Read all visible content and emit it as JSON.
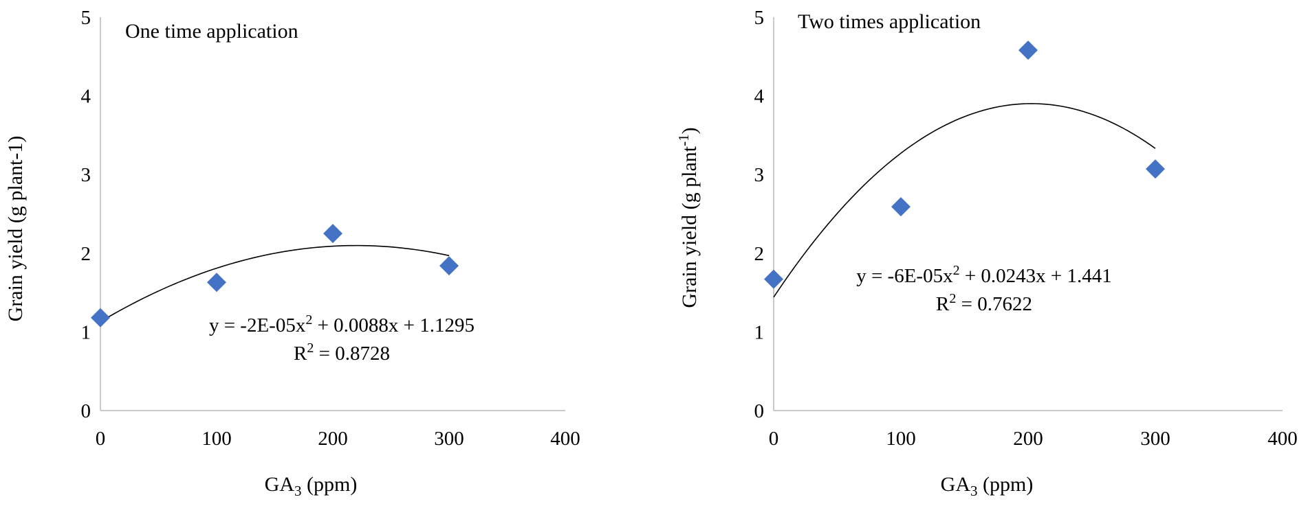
{
  "chart_data": [
    {
      "type": "scatter",
      "annotation": "One time application",
      "xlabel": "GA",
      "xlabel_sub": "3",
      "xlabel_after": " (ppm)",
      "ylabel": "Grain yield (g plant-1)",
      "ylabel_sup": "",
      "ylabel_after": "",
      "xlim": [
        0,
        400
      ],
      "ylim": [
        0,
        5
      ],
      "xticks": [
        0,
        100,
        200,
        300,
        400
      ],
      "yticks": [
        0,
        1,
        2,
        3,
        4,
        5
      ],
      "points": [
        {
          "x": 0,
          "y": 1.18
        },
        {
          "x": 100,
          "y": 1.63
        },
        {
          "x": 200,
          "y": 2.25
        },
        {
          "x": 300,
          "y": 1.84
        }
      ],
      "trendline": {
        "type": "polynomial",
        "a": -2e-05,
        "b": 0.0088,
        "c": 1.1295,
        "x_range": [
          0,
          300
        ]
      },
      "equation": {
        "pre": "y = -2E-05x",
        "sup": "2",
        "post": " + 0.0088x + 1.1295"
      },
      "r2": {
        "pre": "R",
        "sup": "2",
        "post": " = 0.8728"
      },
      "marker_color": "#4472C4",
      "gridlines": false
    },
    {
      "type": "scatter",
      "annotation": "Two times application",
      "xlabel": "GA",
      "xlabel_sub": "3",
      "xlabel_after": " (ppm)",
      "ylabel": "Grain yield (g plant",
      "ylabel_sup": "-1",
      "ylabel_after": ")",
      "xlim": [
        0,
        400
      ],
      "ylim": [
        0,
        5
      ],
      "xticks": [
        0,
        100,
        200,
        300,
        400
      ],
      "yticks": [
        0,
        1,
        2,
        3,
        4,
        5
      ],
      "points": [
        {
          "x": 0,
          "y": 1.67
        },
        {
          "x": 100,
          "y": 2.59
        },
        {
          "x": 200,
          "y": 4.58
        },
        {
          "x": 300,
          "y": 3.07
        }
      ],
      "trendline": {
        "type": "polynomial",
        "a": -6e-05,
        "b": 0.0243,
        "c": 1.441,
        "x_range": [
          0,
          300
        ]
      },
      "equation": {
        "pre": "y = -6E-05x",
        "sup": "2",
        "post": " + 0.0243x + 1.441"
      },
      "r2": {
        "pre": "R",
        "sup": "2",
        "post": " = 0.7622"
      },
      "marker_color": "#4472C4",
      "gridlines": false
    }
  ]
}
